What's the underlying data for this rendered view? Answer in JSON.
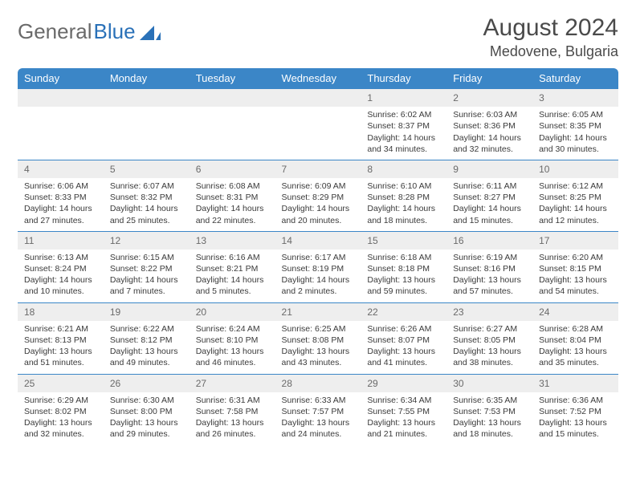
{
  "logo": {
    "text1": "General",
    "text2": "Blue"
  },
  "title": "August 2024",
  "location": "Medovene, Bulgaria",
  "headers": [
    "Sunday",
    "Monday",
    "Tuesday",
    "Wednesday",
    "Thursday",
    "Friday",
    "Saturday"
  ],
  "colors": {
    "header_bg": "#3b86c7",
    "header_fg": "#ffffff",
    "daynum_bg": "#eeeeee",
    "daynum_fg": "#6a6a6a",
    "text": "#3a3a3a",
    "rule": "#3b86c7"
  },
  "weeks": [
    [
      {
        "n": "",
        "lines": []
      },
      {
        "n": "",
        "lines": []
      },
      {
        "n": "",
        "lines": []
      },
      {
        "n": "",
        "lines": []
      },
      {
        "n": "1",
        "lines": [
          "Sunrise: 6:02 AM",
          "Sunset: 8:37 PM",
          "Daylight: 14 hours and 34 minutes."
        ]
      },
      {
        "n": "2",
        "lines": [
          "Sunrise: 6:03 AM",
          "Sunset: 8:36 PM",
          "Daylight: 14 hours and 32 minutes."
        ]
      },
      {
        "n": "3",
        "lines": [
          "Sunrise: 6:05 AM",
          "Sunset: 8:35 PM",
          "Daylight: 14 hours and 30 minutes."
        ]
      }
    ],
    [
      {
        "n": "4",
        "lines": [
          "Sunrise: 6:06 AM",
          "Sunset: 8:33 PM",
          "Daylight: 14 hours and 27 minutes."
        ]
      },
      {
        "n": "5",
        "lines": [
          "Sunrise: 6:07 AM",
          "Sunset: 8:32 PM",
          "Daylight: 14 hours and 25 minutes."
        ]
      },
      {
        "n": "6",
        "lines": [
          "Sunrise: 6:08 AM",
          "Sunset: 8:31 PM",
          "Daylight: 14 hours and 22 minutes."
        ]
      },
      {
        "n": "7",
        "lines": [
          "Sunrise: 6:09 AM",
          "Sunset: 8:29 PM",
          "Daylight: 14 hours and 20 minutes."
        ]
      },
      {
        "n": "8",
        "lines": [
          "Sunrise: 6:10 AM",
          "Sunset: 8:28 PM",
          "Daylight: 14 hours and 18 minutes."
        ]
      },
      {
        "n": "9",
        "lines": [
          "Sunrise: 6:11 AM",
          "Sunset: 8:27 PM",
          "Daylight: 14 hours and 15 minutes."
        ]
      },
      {
        "n": "10",
        "lines": [
          "Sunrise: 6:12 AM",
          "Sunset: 8:25 PM",
          "Daylight: 14 hours and 12 minutes."
        ]
      }
    ],
    [
      {
        "n": "11",
        "lines": [
          "Sunrise: 6:13 AM",
          "Sunset: 8:24 PM",
          "Daylight: 14 hours and 10 minutes."
        ]
      },
      {
        "n": "12",
        "lines": [
          "Sunrise: 6:15 AM",
          "Sunset: 8:22 PM",
          "Daylight: 14 hours and 7 minutes."
        ]
      },
      {
        "n": "13",
        "lines": [
          "Sunrise: 6:16 AM",
          "Sunset: 8:21 PM",
          "Daylight: 14 hours and 5 minutes."
        ]
      },
      {
        "n": "14",
        "lines": [
          "Sunrise: 6:17 AM",
          "Sunset: 8:19 PM",
          "Daylight: 14 hours and 2 minutes."
        ]
      },
      {
        "n": "15",
        "lines": [
          "Sunrise: 6:18 AM",
          "Sunset: 8:18 PM",
          "Daylight: 13 hours and 59 minutes."
        ]
      },
      {
        "n": "16",
        "lines": [
          "Sunrise: 6:19 AM",
          "Sunset: 8:16 PM",
          "Daylight: 13 hours and 57 minutes."
        ]
      },
      {
        "n": "17",
        "lines": [
          "Sunrise: 6:20 AM",
          "Sunset: 8:15 PM",
          "Daylight: 13 hours and 54 minutes."
        ]
      }
    ],
    [
      {
        "n": "18",
        "lines": [
          "Sunrise: 6:21 AM",
          "Sunset: 8:13 PM",
          "Daylight: 13 hours and 51 minutes."
        ]
      },
      {
        "n": "19",
        "lines": [
          "Sunrise: 6:22 AM",
          "Sunset: 8:12 PM",
          "Daylight: 13 hours and 49 minutes."
        ]
      },
      {
        "n": "20",
        "lines": [
          "Sunrise: 6:24 AM",
          "Sunset: 8:10 PM",
          "Daylight: 13 hours and 46 minutes."
        ]
      },
      {
        "n": "21",
        "lines": [
          "Sunrise: 6:25 AM",
          "Sunset: 8:08 PM",
          "Daylight: 13 hours and 43 minutes."
        ]
      },
      {
        "n": "22",
        "lines": [
          "Sunrise: 6:26 AM",
          "Sunset: 8:07 PM",
          "Daylight: 13 hours and 41 minutes."
        ]
      },
      {
        "n": "23",
        "lines": [
          "Sunrise: 6:27 AM",
          "Sunset: 8:05 PM",
          "Daylight: 13 hours and 38 minutes."
        ]
      },
      {
        "n": "24",
        "lines": [
          "Sunrise: 6:28 AM",
          "Sunset: 8:04 PM",
          "Daylight: 13 hours and 35 minutes."
        ]
      }
    ],
    [
      {
        "n": "25",
        "lines": [
          "Sunrise: 6:29 AM",
          "Sunset: 8:02 PM",
          "Daylight: 13 hours and 32 minutes."
        ]
      },
      {
        "n": "26",
        "lines": [
          "Sunrise: 6:30 AM",
          "Sunset: 8:00 PM",
          "Daylight: 13 hours and 29 minutes."
        ]
      },
      {
        "n": "27",
        "lines": [
          "Sunrise: 6:31 AM",
          "Sunset: 7:58 PM",
          "Daylight: 13 hours and 26 minutes."
        ]
      },
      {
        "n": "28",
        "lines": [
          "Sunrise: 6:33 AM",
          "Sunset: 7:57 PM",
          "Daylight: 13 hours and 24 minutes."
        ]
      },
      {
        "n": "29",
        "lines": [
          "Sunrise: 6:34 AM",
          "Sunset: 7:55 PM",
          "Daylight: 13 hours and 21 minutes."
        ]
      },
      {
        "n": "30",
        "lines": [
          "Sunrise: 6:35 AM",
          "Sunset: 7:53 PM",
          "Daylight: 13 hours and 18 minutes."
        ]
      },
      {
        "n": "31",
        "lines": [
          "Sunrise: 6:36 AM",
          "Sunset: 7:52 PM",
          "Daylight: 13 hours and 15 minutes."
        ]
      }
    ]
  ]
}
